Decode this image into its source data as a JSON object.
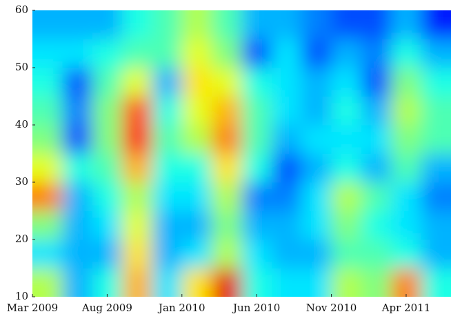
{
  "chart_data": {
    "type": "heatmap",
    "x": [
      0,
      2,
      4,
      6,
      8,
      10,
      12,
      14,
      16,
      18,
      20,
      22,
      24,
      26
    ],
    "y": [
      10,
      15,
      20,
      25,
      30,
      35,
      40,
      45,
      50,
      55
    ],
    "z": [
      [
        0.55,
        0.3,
        0.4,
        0.7,
        0.35,
        0.65,
        0.9,
        0.4,
        0.35,
        0.35,
        0.55,
        0.5,
        0.75,
        0.4
      ],
      [
        0.35,
        0.3,
        0.3,
        0.65,
        0.3,
        0.35,
        0.55,
        0.35,
        0.3,
        0.3,
        0.45,
        0.45,
        0.4,
        0.3
      ],
      [
        0.5,
        0.3,
        0.35,
        0.6,
        0.3,
        0.3,
        0.5,
        0.3,
        0.3,
        0.35,
        0.5,
        0.4,
        0.35,
        0.3
      ],
      [
        0.75,
        0.3,
        0.4,
        0.55,
        0.35,
        0.35,
        0.55,
        0.25,
        0.25,
        0.35,
        0.55,
        0.45,
        0.35,
        0.25
      ],
      [
        0.6,
        0.4,
        0.45,
        0.7,
        0.4,
        0.4,
        0.65,
        0.4,
        0.2,
        0.3,
        0.4,
        0.3,
        0.45,
        0.3
      ],
      [
        0.5,
        0.2,
        0.5,
        0.85,
        0.45,
        0.55,
        0.75,
        0.45,
        0.3,
        0.35,
        0.35,
        0.35,
        0.5,
        0.45
      ],
      [
        0.45,
        0.25,
        0.5,
        0.8,
        0.4,
        0.6,
        0.7,
        0.45,
        0.35,
        0.3,
        0.4,
        0.3,
        0.55,
        0.45
      ],
      [
        0.4,
        0.2,
        0.45,
        0.6,
        0.3,
        0.65,
        0.6,
        0.4,
        0.35,
        0.3,
        0.35,
        0.2,
        0.5,
        0.4
      ],
      [
        0.35,
        0.35,
        0.4,
        0.45,
        0.45,
        0.6,
        0.5,
        0.2,
        0.35,
        0.2,
        0.3,
        0.25,
        0.4,
        0.3
      ],
      [
        0.3,
        0.3,
        0.3,
        0.4,
        0.45,
        0.55,
        0.45,
        0.3,
        0.3,
        0.25,
        0.2,
        0.2,
        0.3,
        0.15
      ]
    ],
    "xlim": [
      0,
      28
    ],
    "xticks": [
      {
        "value": 0,
        "label": "Mar 2009"
      },
      {
        "value": 5,
        "label": "Aug 2009"
      },
      {
        "value": 10,
        "label": "Jan 2010"
      },
      {
        "value": 15,
        "label": "Jun 2010"
      },
      {
        "value": 20,
        "label": "Nov 2010"
      },
      {
        "value": 25,
        "label": "Apr 2011"
      }
    ],
    "ylim": [
      10,
      60
    ],
    "yticks": [
      10,
      20,
      30,
      40,
      50,
      60
    ],
    "colormap": "jet"
  }
}
